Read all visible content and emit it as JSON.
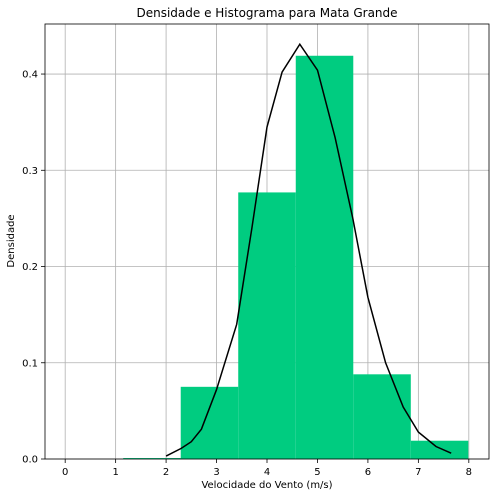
{
  "chart_data": {
    "type": "bar",
    "title": "Densidade e Histograma para Mata Grande",
    "xlabel": "Velocidade do Vento (m/s)",
    "ylabel": "Densidade",
    "xlim": [
      -0.4,
      8.4
    ],
    "ylim": [
      0,
      0.452
    ],
    "grid": true,
    "xticks": [
      0,
      1,
      2,
      3,
      4,
      5,
      6,
      7,
      8
    ],
    "xtick_labels": [
      "0",
      "1",
      "2",
      "3",
      "4",
      "5",
      "6",
      "7",
      "8"
    ],
    "yticks": [
      0.0,
      0.1,
      0.2,
      0.3,
      0.4
    ],
    "ytick_labels": [
      "0.0",
      "0.1",
      "0.2",
      "0.3",
      "0.4"
    ],
    "histogram": {
      "color": "#00cc80",
      "bins": [
        {
          "x0": 1.15,
          "x1": 2.29,
          "value": 0.001
        },
        {
          "x0": 2.29,
          "x1": 3.43,
          "value": 0.075
        },
        {
          "x0": 3.43,
          "x1": 4.57,
          "value": 0.277
        },
        {
          "x0": 4.57,
          "x1": 5.71,
          "value": 0.419
        },
        {
          "x0": 5.71,
          "x1": 6.85,
          "value": 0.088
        },
        {
          "x0": 6.85,
          "x1": 7.99,
          "value": 0.019
        }
      ]
    },
    "density": {
      "color": "#000000",
      "x": [
        2.0,
        2.3,
        2.5,
        2.7,
        3.0,
        3.4,
        3.7,
        4.0,
        4.3,
        4.65,
        5.0,
        5.35,
        5.7,
        6.0,
        6.35,
        6.7,
        7.0,
        7.35,
        7.65
      ],
      "y": [
        0.003,
        0.011,
        0.018,
        0.031,
        0.072,
        0.14,
        0.24,
        0.345,
        0.402,
        0.431,
        0.404,
        0.334,
        0.25,
        0.168,
        0.1,
        0.054,
        0.028,
        0.013,
        0.006
      ]
    }
  }
}
